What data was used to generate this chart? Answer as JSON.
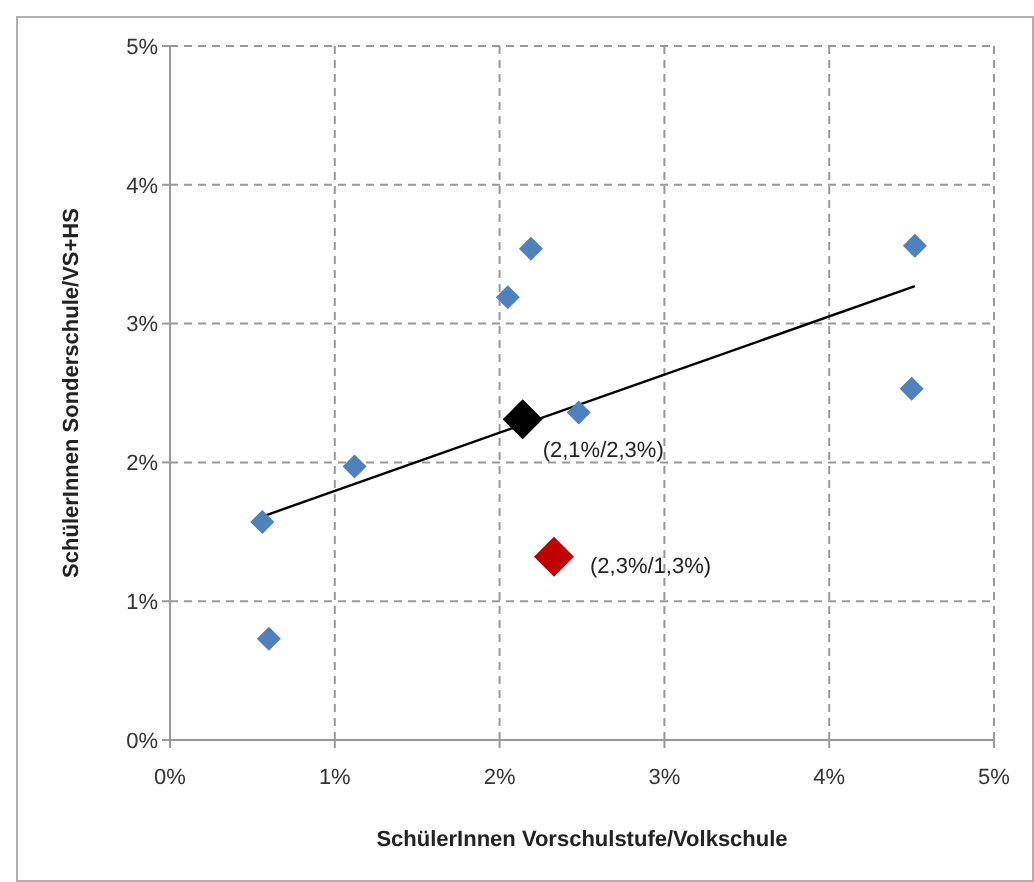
{
  "chart_data": {
    "type": "scatter",
    "xlabel": "SchülerInnen Vorschulstufe/Volkschule",
    "ylabel": "SchülerInnen Sonderschule/VS+HS",
    "xlim": [
      0,
      5
    ],
    "ylim": [
      0,
      5
    ],
    "xticks": [
      {
        "value": 0,
        "label": "0%"
      },
      {
        "value": 1,
        "label": "1%"
      },
      {
        "value": 2,
        "label": "2%"
      },
      {
        "value": 3,
        "label": "3%"
      },
      {
        "value": 4,
        "label": "4%"
      },
      {
        "value": 5,
        "label": "5%"
      }
    ],
    "yticks": [
      {
        "value": 0,
        "label": "0%"
      },
      {
        "value": 1,
        "label": "1%"
      },
      {
        "value": 2,
        "label": "2%"
      },
      {
        "value": 3,
        "label": "3%"
      },
      {
        "value": 4,
        "label": "4%"
      },
      {
        "value": 5,
        "label": "5%"
      }
    ],
    "grid": true,
    "marker": "diamond",
    "series": [
      {
        "type": "line",
        "marker": "none",
        "color": "#000000",
        "x": [
          0.56,
          4.52
        ],
        "values": [
          1.61,
          3.27
        ]
      },
      {
        "color": "#4f81bd",
        "x": [
          0.56,
          0.6,
          1.12,
          2.05,
          2.19,
          2.48,
          4.52,
          4.5
        ],
        "values": [
          1.57,
          0.73,
          1.97,
          3.19,
          3.54,
          2.36,
          3.56,
          2.53
        ]
      },
      {
        "color": "#000000",
        "x": [
          2.14
        ],
        "values": [
          2.31
        ]
      },
      {
        "color": "#c00000",
        "x": [
          2.33
        ],
        "values": [
          1.32
        ]
      }
    ],
    "annotations": [
      {
        "text": "(2,1%/2,3%)",
        "x": 2.14,
        "y": 2.31
      },
      {
        "text": "(2,3%/1,3%)",
        "x": 2.33,
        "y": 1.32
      }
    ]
  }
}
